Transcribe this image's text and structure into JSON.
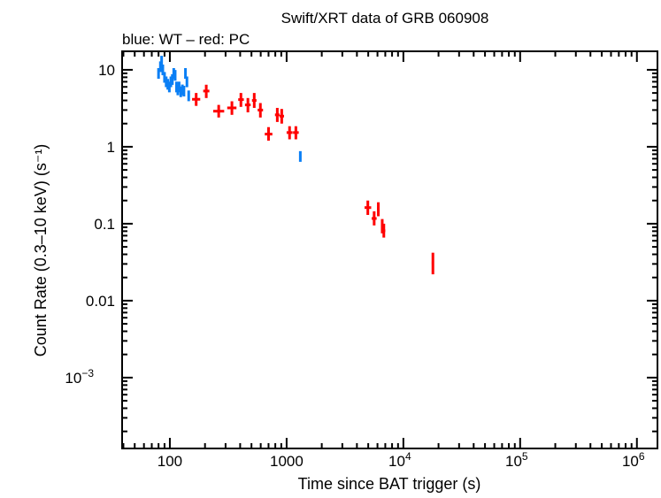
{
  "chart_data": {
    "type": "scatter",
    "title": "Swift/XRT data of GRB 060908",
    "subtitle": "blue: WT – red: PC",
    "xlabel": "Time since BAT trigger (s)",
    "ylabel": "Count Rate (0.3–10 keV) (s⁻¹)",
    "xscale": "log",
    "yscale": "log",
    "xlim": [
      39,
      1500000
    ],
    "ylim": [
      0.00012,
      17.4
    ],
    "grid": false,
    "x_ticks": [
      {
        "v": 100,
        "label": "100"
      },
      {
        "v": 1000,
        "label": "1000"
      },
      {
        "v": 10000,
        "label": "10",
        "exp": "4"
      },
      {
        "v": 100000,
        "label": "10",
        "exp": "5"
      },
      {
        "v": 1000000,
        "label": "10",
        "exp": "6"
      }
    ],
    "y_ticks": [
      {
        "v": 10,
        "label": "10"
      },
      {
        "v": 1,
        "label": "1"
      },
      {
        "v": 0.1,
        "label": "0.1"
      },
      {
        "v": 0.01,
        "label": "0.01"
      },
      {
        "v": 0.001,
        "label": "10",
        "exp": "−3"
      }
    ],
    "series": [
      {
        "mode": "WT",
        "color": "#0a7ff5",
        "points": [
          [
            80,
            9.0
          ],
          [
            83,
            11
          ],
          [
            85,
            13
          ],
          [
            87,
            10
          ],
          [
            90,
            8
          ],
          [
            93,
            7
          ],
          [
            96,
            6.5
          ],
          [
            99,
            6
          ],
          [
            102,
            7
          ],
          [
            105,
            7.5
          ],
          [
            108,
            9
          ],
          [
            111,
            8.5
          ],
          [
            114,
            6
          ],
          [
            117,
            5.5
          ],
          [
            120,
            6
          ],
          [
            124,
            5.2
          ],
          [
            128,
            5.5
          ],
          [
            132,
            5.3
          ],
          [
            136,
            9
          ],
          [
            140,
            7
          ],
          [
            145,
            4.6
          ],
          [
            1310,
            0.75
          ]
        ]
      },
      {
        "mode": "PC",
        "color": "#ff0000",
        "points": [
          [
            168,
            155,
            182,
            4.14,
            3.4,
            5.0
          ],
          [
            205,
            193,
            218,
            5.3,
            4.3,
            6.4
          ],
          [
            262,
            235,
            292,
            2.9,
            2.4,
            3.5
          ],
          [
            340,
            310,
            372,
            3.2,
            2.6,
            3.9
          ],
          [
            406,
            385,
            430,
            4.1,
            3.3,
            5.0
          ],
          [
            466,
            440,
            492,
            3.5,
            2.8,
            4.3
          ],
          [
            528,
            505,
            552,
            4.0,
            3.2,
            5.0
          ],
          [
            596,
            565,
            628,
            3.0,
            2.4,
            3.7
          ],
          [
            700,
            650,
            755,
            1.46,
            1.2,
            1.8
          ],
          [
            832,
            795,
            870,
            2.6,
            2.1,
            3.2
          ],
          [
            908,
            870,
            950,
            2.5,
            2.0,
            3.1
          ],
          [
            1060,
            1000,
            1125,
            1.53,
            1.25,
            1.85
          ],
          [
            1200,
            1135,
            1270,
            1.53,
            1.25,
            1.85
          ],
          [
            4960,
            4650,
            5300,
            0.162,
            0.13,
            0.2
          ],
          [
            5620,
            5350,
            5900,
            0.117,
            0.095,
            0.145
          ],
          [
            6100,
            5950,
            6250,
            0.156,
            0.125,
            0.19
          ],
          [
            6590,
            6450,
            6730,
            0.095,
            0.075,
            0.115
          ],
          [
            6800,
            6600,
            7000,
            0.081,
            0.066,
            0.1
          ],
          [
            17900,
            17500,
            18300,
            0.031,
            0.022,
            0.042
          ]
        ]
      }
    ]
  }
}
